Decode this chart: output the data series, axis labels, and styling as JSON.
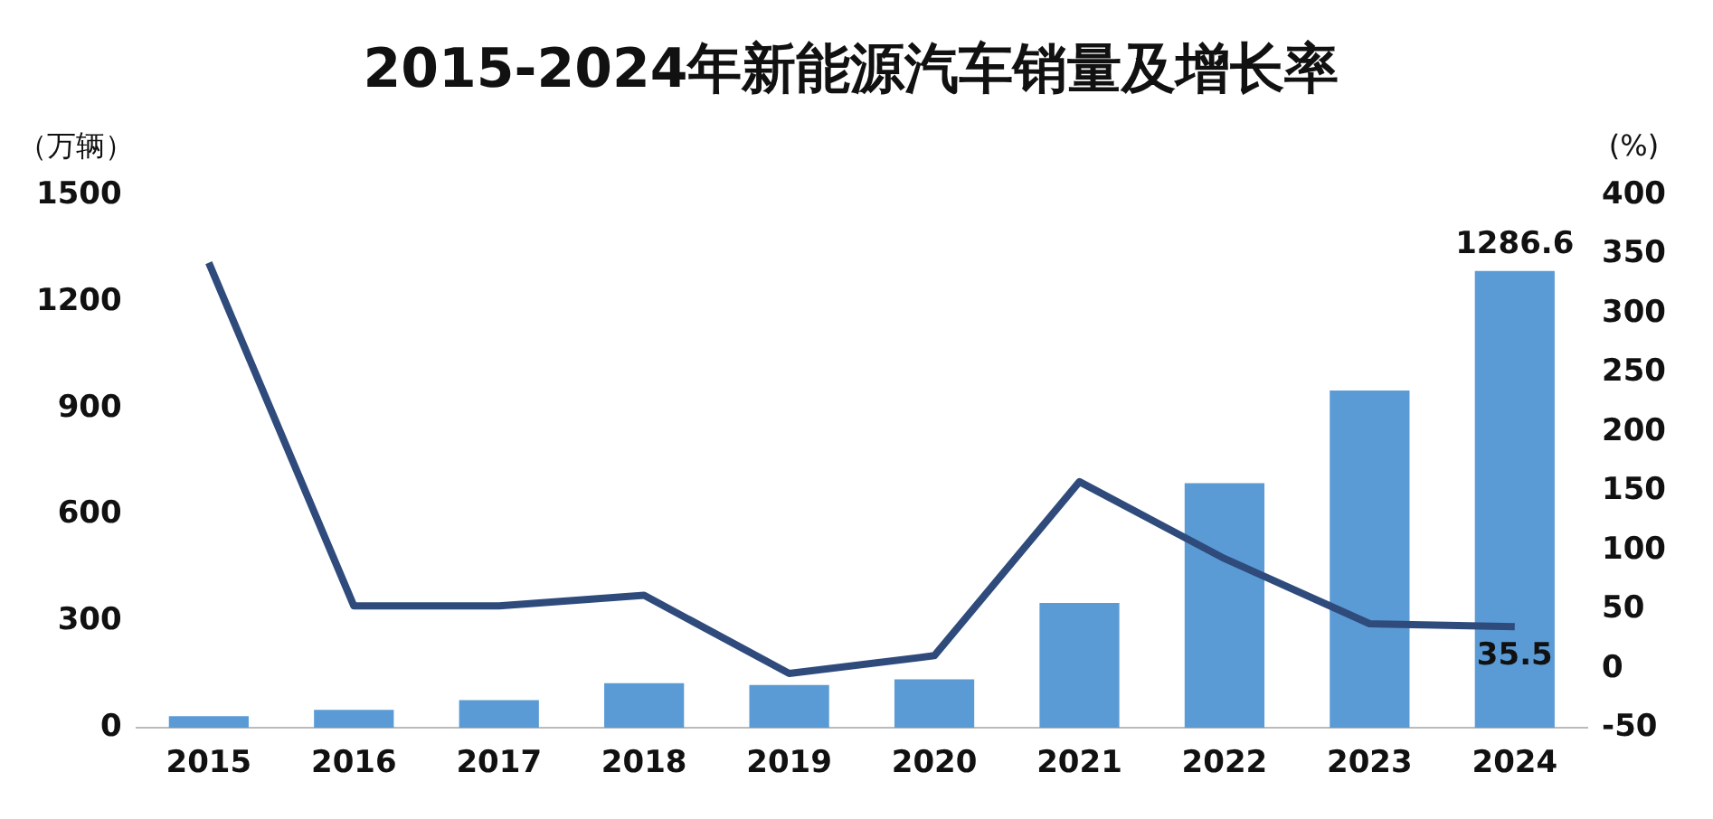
{
  "chart_data": {
    "type": "bar",
    "title": "2015-2024年新能源汽车销量及增长率",
    "ylabel": "（万辆）",
    "y2label": "(%)",
    "categories": [
      "2015",
      "2016",
      "2017",
      "2018",
      "2019",
      "2020",
      "2021",
      "2022",
      "2023",
      "2024"
    ],
    "series": [
      {
        "color": "#5b9bd5",
        "values": [
          33,
          51,
          78,
          126,
          121,
          137,
          352,
          689,
          950,
          1286.6
        ],
        "value_labels": [
          null,
          null,
          null,
          null,
          null,
          null,
          null,
          null,
          null,
          "1286.6"
        ]
      },
      {
        "type": "line",
        "axis": "y2",
        "color": "#2f4b7c",
        "values": [
          343,
          53,
          53,
          62,
          -4,
          11,
          158,
          93,
          38,
          35.5
        ],
        "value_labels": [
          null,
          null,
          null,
          null,
          null,
          null,
          null,
          null,
          null,
          "35.5"
        ]
      }
    ],
    "ylim": [
      0,
      1500
    ],
    "yticks": [
      0,
      300,
      600,
      900,
      1200,
      1500
    ],
    "y2lim": [
      -50,
      400
    ],
    "y2ticks": [
      -50,
      0,
      50,
      100,
      150,
      200,
      250,
      300,
      350,
      400
    ],
    "marker": "none",
    "line_style": "solid"
  }
}
